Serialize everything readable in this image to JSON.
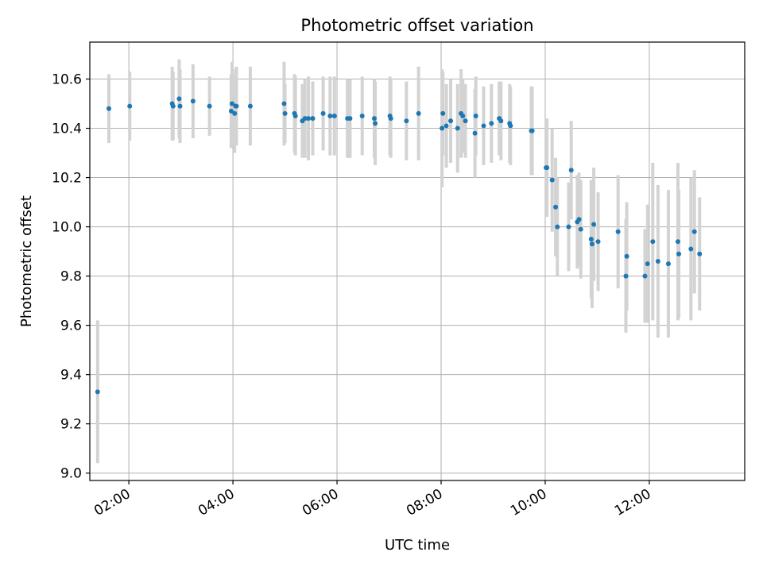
{
  "chart_data": {
    "type": "scatter",
    "title": "Photometric offset variation",
    "xlabel": "UTC time",
    "ylabel": "Photometric offset",
    "x_axis_type": "time",
    "xlim": [
      "01:15",
      "13:50"
    ],
    "ylim": [
      8.97,
      10.75
    ],
    "x_ticks": [
      "02:00",
      "04:00",
      "06:00",
      "08:00",
      "10:00",
      "12:00"
    ],
    "y_ticks": [
      "9.0",
      "9.2",
      "9.4",
      "9.6",
      "9.8",
      "10.0",
      "10.2",
      "10.4",
      "10.6"
    ],
    "grid": true,
    "legend": "none",
    "colors": {
      "point": "#1f77b4",
      "errorbar": "#d3d3d3",
      "grid": "#b0b0b0"
    },
    "series": [
      {
        "x": [
          "01:24",
          "01:37",
          "02:01",
          "02:50",
          "02:51",
          "02:58",
          "02:59",
          "03:14",
          "03:33",
          "03:58",
          "03:59",
          "04:02",
          "04:03",
          "04:04",
          "04:20",
          "04:59",
          "05:00",
          "05:11",
          "05:12",
          "05:20",
          "05:23",
          "05:27",
          "05:32",
          "05:44",
          "05:52",
          "05:57",
          "06:12",
          "06:15",
          "06:29",
          "06:43",
          "06:44",
          "07:01",
          "07:02",
          "07:20",
          "07:34",
          "08:01",
          "08:02",
          "08:06",
          "08:11",
          "08:19",
          "08:23",
          "08:25",
          "08:28",
          "08:39",
          "08:40",
          "08:49",
          "08:58",
          "09:07",
          "09:09",
          "09:19",
          "09:20",
          "09:44",
          "09:45",
          "10:01",
          "10:02",
          "10:08",
          "10:12",
          "10:14",
          "10:27",
          "10:30",
          "10:37",
          "10:39",
          "10:41",
          "10:53",
          "10:54",
          "10:56",
          "11:01",
          "11:24",
          "11:33",
          "11:34",
          "11:55",
          "11:58",
          "12:04",
          "12:10",
          "12:22",
          "12:33",
          "12:34",
          "12:48",
          "12:52",
          "12:58"
        ],
        "y": [
          9.33,
          10.48,
          10.49,
          10.5,
          10.49,
          10.52,
          10.49,
          10.51,
          10.49,
          10.47,
          10.5,
          10.46,
          10.49,
          10.49,
          10.49,
          10.5,
          10.46,
          10.46,
          10.45,
          10.43,
          10.44,
          10.44,
          10.44,
          10.46,
          10.45,
          10.45,
          10.44,
          10.44,
          10.45,
          10.44,
          10.42,
          10.45,
          10.44,
          10.43,
          10.46,
          10.4,
          10.46,
          10.41,
          10.43,
          10.4,
          10.46,
          10.45,
          10.43,
          10.38,
          10.45,
          10.41,
          10.42,
          10.44,
          10.43,
          10.42,
          10.41,
          10.39,
          10.39,
          10.24,
          10.24,
          10.19,
          10.08,
          10.0,
          10.0,
          10.23,
          10.02,
          10.03,
          9.99,
          9.95,
          9.93,
          10.01,
          9.94,
          9.98,
          9.8,
          9.88,
          9.8,
          9.85,
          9.94,
          9.86,
          9.85,
          9.94,
          9.89,
          9.91,
          9.98,
          9.89
        ],
        "yerr": [
          0.29,
          0.14,
          0.14,
          0.15,
          0.14,
          0.16,
          0.15,
          0.15,
          0.12,
          0.15,
          0.17,
          0.16,
          0.15,
          0.16,
          0.16,
          0.17,
          0.12,
          0.16,
          0.16,
          0.15,
          0.16,
          0.17,
          0.15,
          0.15,
          0.16,
          0.16,
          0.16,
          0.16,
          0.16,
          0.16,
          0.17,
          0.16,
          0.16,
          0.16,
          0.19,
          0.24,
          0.17,
          0.17,
          0.17,
          0.18,
          0.18,
          0.15,
          0.15,
          0.18,
          0.16,
          0.16,
          0.16,
          0.15,
          0.16,
          0.16,
          0.16,
          0.18,
          0.18,
          0.2,
          0.2,
          0.21,
          0.2,
          0.2,
          0.18,
          0.2,
          0.19,
          0.19,
          0.2,
          0.24,
          0.26,
          0.23,
          0.2,
          0.23,
          0.23,
          0.22,
          0.19,
          0.24,
          0.32,
          0.31,
          0.3,
          0.32,
          0.26,
          0.29,
          0.25,
          0.23
        ]
      }
    ]
  }
}
